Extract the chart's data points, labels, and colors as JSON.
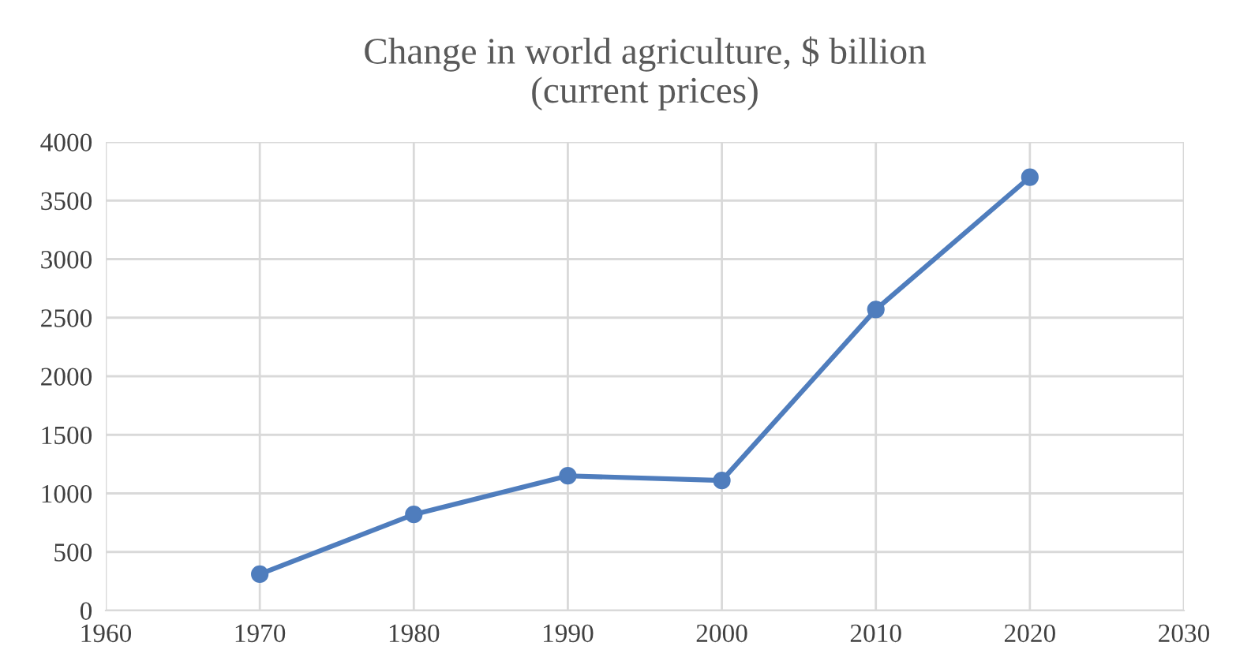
{
  "chart_data": {
    "type": "line",
    "title": "Change in world agriculture, $ billion\n(current prices)",
    "x": [
      1970,
      1980,
      1990,
      2000,
      2010,
      2020
    ],
    "series": [
      {
        "color": "#4f7dbd",
        "values": [
          310,
          820,
          1150,
          1110,
          2570,
          3700
        ]
      }
    ],
    "xlim": [
      1960,
      2030
    ],
    "xticks": [
      1960,
      1970,
      1980,
      1990,
      2000,
      2010,
      2020,
      2030
    ],
    "ylim": [
      0,
      4000
    ],
    "yticks": [
      0,
      500,
      1000,
      1500,
      2000,
      2500,
      3000,
      3500,
      4000
    ],
    "grid": true,
    "marker": "circle",
    "line_style": "solid",
    "legend": false
  }
}
